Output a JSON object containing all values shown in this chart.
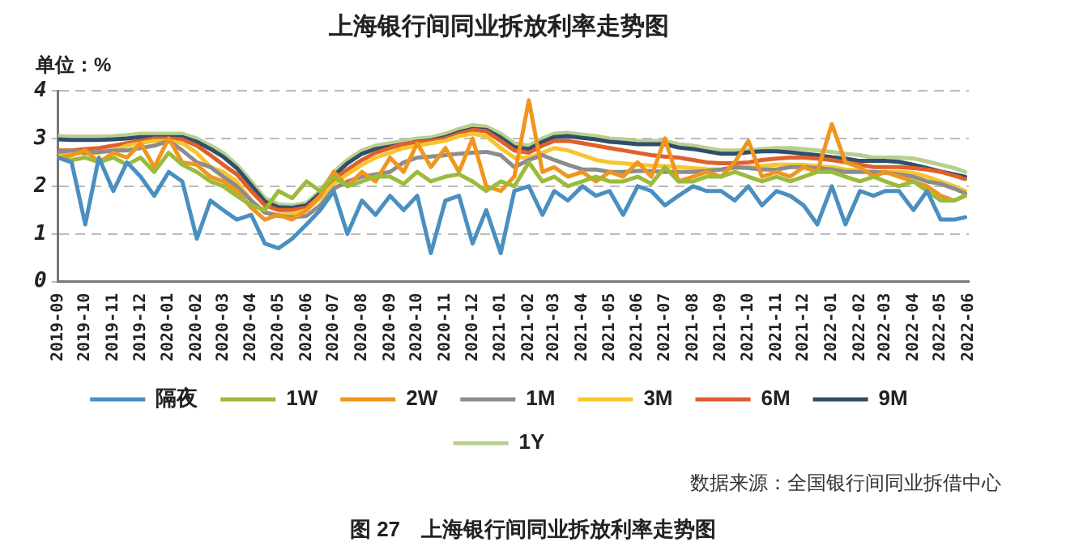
{
  "chart_data": {
    "type": "line",
    "title": "上海银行间同业拆放利率走势图",
    "ylabel": "单位：%",
    "annotations": [
      "数据来源：全国银行间同业拆借中心",
      "图 27　上海银行间同业拆放利率走势图"
    ],
    "x": [
      "2019-09-01",
      "2019-09-16",
      "2019-10-01",
      "2019-10-16",
      "2019-11-01",
      "2019-11-16",
      "2019-12-01",
      "2019-12-16",
      "2020-01-01",
      "2020-01-16",
      "2020-02-01",
      "2020-02-16",
      "2020-03-01",
      "2020-03-16",
      "2020-04-01",
      "2020-04-16",
      "2020-05-01",
      "2020-05-16",
      "2020-06-01",
      "2020-06-16",
      "2020-07-01",
      "2020-07-16",
      "2020-08-01",
      "2020-08-16",
      "2020-09-01",
      "2020-09-16",
      "2020-10-01",
      "2020-10-16",
      "2020-11-01",
      "2020-11-16",
      "2020-12-01",
      "2020-12-16",
      "2021-01-01",
      "2021-01-16",
      "2021-02-01",
      "2021-02-16",
      "2021-03-01",
      "2021-03-16",
      "2021-04-01",
      "2021-04-16",
      "2021-05-01",
      "2021-05-16",
      "2021-06-01",
      "2021-06-16",
      "2021-07-01",
      "2021-07-16",
      "2021-08-01",
      "2021-08-16",
      "2021-09-01",
      "2021-09-16",
      "2021-10-01",
      "2021-10-16",
      "2021-11-01",
      "2021-11-16",
      "2021-12-01",
      "2021-12-16",
      "2022-01-01",
      "2022-01-16",
      "2022-02-01",
      "2022-02-16",
      "2022-03-01",
      "2022-03-16",
      "2022-04-01",
      "2022-04-16",
      "2022-05-01",
      "2022-05-16",
      "2022-05-28"
    ],
    "xlim": [
      "2019-09",
      "2022-06"
    ],
    "xticks": [
      "2019-09",
      "2019-10",
      "2019-11",
      "2019-12",
      "2020-01",
      "2020-02",
      "2020-03",
      "2020-04",
      "2020-05",
      "2020-06",
      "2020-07",
      "2020-08",
      "2020-09",
      "2020-10",
      "2020-11",
      "2020-12",
      "2021-01",
      "2021-02",
      "2021-03",
      "2021-04",
      "2021-05",
      "2021-06",
      "2021-07",
      "2021-08",
      "2021-09",
      "2021-10",
      "2021-11",
      "2021-12",
      "2022-01",
      "2022-02",
      "2022-03",
      "2022-04",
      "2022-05",
      "2022-06"
    ],
    "ylim": [
      0,
      4
    ],
    "yticks": [
      0,
      1,
      2,
      3,
      4
    ],
    "grid": "y",
    "legend": "bottom",
    "marker": "none",
    "line_style": "solid",
    "series": [
      {
        "name": "隔夜",
        "color": "#4a8fc0",
        "values": [
          2.6,
          2.5,
          1.2,
          2.6,
          1.9,
          2.5,
          2.2,
          1.8,
          2.3,
          2.1,
          0.9,
          1.7,
          1.5,
          1.3,
          1.4,
          0.8,
          0.7,
          0.9,
          1.2,
          1.5,
          1.9,
          1.0,
          1.7,
          1.4,
          1.8,
          1.5,
          1.8,
          0.6,
          1.7,
          1.8,
          0.8,
          1.5,
          0.6,
          1.9,
          2.0,
          1.4,
          1.9,
          1.7,
          2.0,
          1.8,
          1.9,
          1.4,
          2.0,
          1.9,
          1.6,
          1.8,
          2.0,
          1.9,
          1.9,
          1.7,
          2.0,
          1.6,
          1.9,
          1.8,
          1.6,
          1.2,
          2.0,
          1.2,
          1.9,
          1.8,
          1.9,
          1.9,
          1.5,
          1.9,
          1.3,
          1.3,
          1.35
        ]
      },
      {
        "name": "1W",
        "color": "#9bbb3b",
        "values": [
          2.6,
          2.55,
          2.6,
          2.5,
          2.6,
          2.45,
          2.6,
          2.3,
          2.7,
          2.45,
          2.3,
          2.1,
          2.0,
          1.8,
          1.6,
          1.5,
          1.9,
          1.75,
          2.1,
          1.9,
          2.2,
          2.0,
          2.1,
          2.2,
          2.2,
          2.05,
          2.3,
          2.1,
          2.2,
          2.25,
          2.1,
          1.9,
          2.1,
          2.0,
          2.5,
          2.1,
          2.2,
          2.0,
          2.1,
          2.2,
          2.1,
          2.1,
          2.2,
          2.05,
          2.4,
          2.1,
          2.1,
          2.2,
          2.2,
          2.3,
          2.2,
          2.1,
          2.2,
          2.1,
          2.2,
          2.3,
          2.3,
          2.2,
          2.1,
          2.2,
          2.1,
          2.0,
          2.1,
          1.9,
          1.7,
          1.7,
          1.8
        ]
      },
      {
        "name": "2W",
        "color": "#f0961e",
        "values": [
          2.6,
          2.65,
          2.75,
          2.5,
          2.7,
          2.6,
          2.9,
          2.4,
          3.0,
          2.5,
          2.45,
          2.2,
          2.1,
          1.9,
          1.55,
          1.3,
          1.4,
          1.3,
          1.5,
          1.8,
          2.3,
          2.0,
          2.3,
          2.1,
          2.6,
          2.3,
          2.9,
          2.4,
          2.8,
          2.3,
          3.0,
          2.0,
          1.9,
          2.2,
          3.8,
          2.3,
          2.4,
          2.2,
          2.3,
          2.1,
          2.3,
          2.2,
          2.5,
          2.2,
          3.0,
          2.1,
          2.2,
          2.3,
          2.2,
          2.5,
          2.95,
          2.2,
          2.3,
          2.2,
          2.4,
          2.3,
          3.3,
          2.5,
          2.4,
          2.2,
          2.3,
          2.2,
          2.1,
          2.0,
          1.8,
          1.7,
          1.8
        ]
      },
      {
        "name": "1M",
        "color": "#8c8c8c",
        "values": [
          2.72,
          2.75,
          2.7,
          2.72,
          2.75,
          2.75,
          2.8,
          2.85,
          2.95,
          2.75,
          2.5,
          2.4,
          2.2,
          2.0,
          1.7,
          1.45,
          1.38,
          1.35,
          1.38,
          1.6,
          1.95,
          2.1,
          2.2,
          2.25,
          2.3,
          2.5,
          2.6,
          2.62,
          2.65,
          2.68,
          2.7,
          2.72,
          2.65,
          2.4,
          2.55,
          2.65,
          2.55,
          2.45,
          2.35,
          2.35,
          2.3,
          2.3,
          2.32,
          2.32,
          2.3,
          2.3,
          2.3,
          2.32,
          2.35,
          2.4,
          2.38,
          2.35,
          2.35,
          2.4,
          2.4,
          2.38,
          2.35,
          2.3,
          2.3,
          2.3,
          2.28,
          2.25,
          2.2,
          2.1,
          2.05,
          1.95,
          1.85
        ]
      },
      {
        "name": "3M",
        "color": "#f7c530",
        "values": [
          2.7,
          2.7,
          2.68,
          2.7,
          2.75,
          2.85,
          2.9,
          2.95,
          2.95,
          2.9,
          2.7,
          2.4,
          2.3,
          2.1,
          1.7,
          1.45,
          1.4,
          1.42,
          1.5,
          1.75,
          2.05,
          2.25,
          2.45,
          2.6,
          2.7,
          2.8,
          2.85,
          2.9,
          2.95,
          3.05,
          3.1,
          3.05,
          2.8,
          2.6,
          2.6,
          2.7,
          2.8,
          2.75,
          2.65,
          2.55,
          2.5,
          2.48,
          2.45,
          2.43,
          2.42,
          2.4,
          2.38,
          2.36,
          2.35,
          2.38,
          2.4,
          2.42,
          2.45,
          2.45,
          2.45,
          2.42,
          2.4,
          2.35,
          2.33,
          2.3,
          2.3,
          2.3,
          2.28,
          2.2,
          2.1,
          2.0,
          1.9
        ]
      },
      {
        "name": "6M",
        "color": "#e0602a",
        "values": [
          2.75,
          2.75,
          2.78,
          2.8,
          2.85,
          2.9,
          2.95,
          3.0,
          3.0,
          2.98,
          2.85,
          2.65,
          2.45,
          2.25,
          1.9,
          1.6,
          1.5,
          1.5,
          1.55,
          1.8,
          2.15,
          2.35,
          2.55,
          2.7,
          2.8,
          2.88,
          2.92,
          2.95,
          3.0,
          3.1,
          3.18,
          3.15,
          2.95,
          2.75,
          2.7,
          2.85,
          2.95,
          2.95,
          2.9,
          2.85,
          2.8,
          2.75,
          2.7,
          2.65,
          2.62,
          2.6,
          2.55,
          2.5,
          2.48,
          2.48,
          2.5,
          2.55,
          2.58,
          2.6,
          2.6,
          2.58,
          2.55,
          2.5,
          2.45,
          2.4,
          2.4,
          2.4,
          2.38,
          2.35,
          2.3,
          2.22,
          2.15
        ]
      },
      {
        "name": "9M",
        "color": "#2f4f6a",
        "values": [
          2.98,
          2.97,
          2.97,
          2.97,
          2.98,
          3.0,
          3.03,
          3.03,
          3.03,
          3.03,
          2.93,
          2.78,
          2.62,
          2.38,
          2.02,
          1.68,
          1.56,
          1.55,
          1.6,
          1.85,
          2.22,
          2.48,
          2.68,
          2.78,
          2.83,
          2.88,
          2.93,
          2.96,
          3.03,
          3.13,
          3.2,
          3.18,
          3.02,
          2.82,
          2.78,
          2.93,
          3.03,
          3.05,
          3.01,
          2.98,
          2.93,
          2.91,
          2.88,
          2.88,
          2.88,
          2.81,
          2.78,
          2.73,
          2.68,
          2.68,
          2.71,
          2.73,
          2.73,
          2.71,
          2.68,
          2.65,
          2.61,
          2.58,
          2.53,
          2.53,
          2.53,
          2.51,
          2.45,
          2.38,
          2.31,
          2.25,
          2.2
        ]
      },
      {
        "name": "1Y",
        "color": "#b9cf8f",
        "values": [
          3.05,
          3.04,
          3.04,
          3.04,
          3.05,
          3.07,
          3.1,
          3.1,
          3.1,
          3.1,
          3.0,
          2.85,
          2.7,
          2.45,
          2.1,
          1.75,
          1.62,
          1.6,
          1.65,
          1.9,
          2.3,
          2.55,
          2.75,
          2.85,
          2.9,
          2.95,
          3.0,
          3.02,
          3.1,
          3.2,
          3.28,
          3.25,
          3.1,
          2.9,
          2.85,
          3.0,
          3.1,
          3.12,
          3.08,
          3.05,
          3.0,
          2.98,
          2.95,
          2.95,
          2.95,
          2.88,
          2.85,
          2.8,
          2.75,
          2.75,
          2.75,
          2.78,
          2.8,
          2.8,
          2.78,
          2.75,
          2.72,
          2.68,
          2.65,
          2.6,
          2.6,
          2.6,
          2.58,
          2.52,
          2.45,
          2.38,
          2.3
        ]
      }
    ]
  }
}
